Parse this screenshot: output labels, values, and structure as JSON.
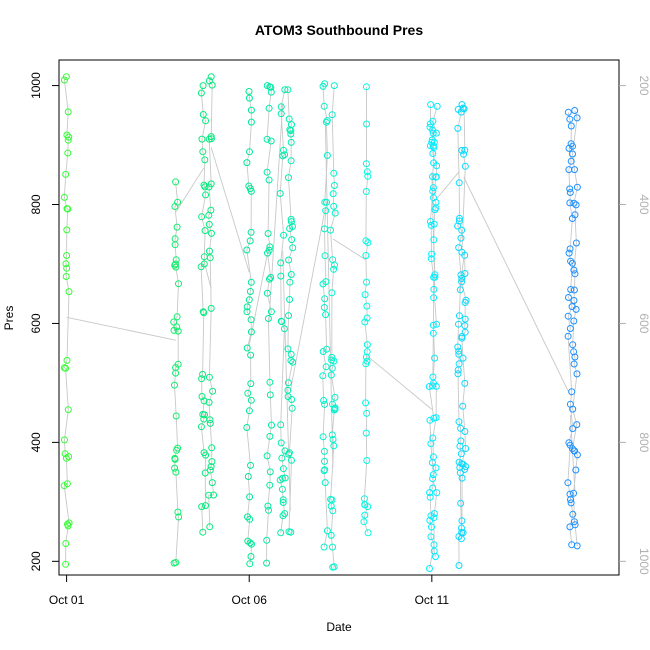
{
  "chart_data": {
    "type": "scatter",
    "title": "ATOM3 Southbound Pres",
    "xlabel": "Date",
    "ylabel": "Pres",
    "x_type": "date",
    "xlim": [
      "2000-09-30T19:00",
      "2000-10-16T03:00"
    ],
    "ylim": [
      177,
      1043
    ],
    "x_ticks": [
      {
        "value": "2000-10-01",
        "label": "Oct 01"
      },
      {
        "value": "2000-10-06",
        "label": "Oct 06"
      },
      {
        "value": "2000-10-11",
        "label": "Oct 11"
      }
    ],
    "y_ticks": [
      200,
      400,
      600,
      800,
      1000
    ],
    "y2_reversed": true,
    "y2_ticks": [
      200,
      400,
      600,
      800,
      1000
    ],
    "grid": false,
    "legend": "none",
    "series_color_ramp": [
      "#33ff33",
      "#00e68c",
      "#00ffff",
      "#1e90ff"
    ],
    "line_color": "#c8c8c8",
    "profiles": [
      {
        "x": "2000-10-01T00:00",
        "pmin": 195,
        "pmax": 1015
      },
      {
        "x": "2000-10-04T00:00",
        "pmin": 197,
        "pmax": 838
      },
      {
        "x": "2000-10-04T18:00",
        "pmin": 249,
        "pmax": 1000
      },
      {
        "x": "2000-10-04T23:00",
        "pmin": 258,
        "pmax": 1015
      },
      {
        "x": "2000-10-06T00:00",
        "pmin": 196,
        "pmax": 990
      },
      {
        "x": "2000-10-06T13:00",
        "pmin": 197,
        "pmax": 1000
      },
      {
        "x": "2000-10-06T22:00",
        "pmin": 248,
        "pmax": 993
      },
      {
        "x": "2000-10-07T03:00",
        "pmin": 249,
        "pmax": 993
      },
      {
        "x": "2000-10-08T02:00",
        "pmin": 224,
        "pmax": 1003
      },
      {
        "x": "2000-10-08T07:00",
        "pmin": 190,
        "pmax": 1000
      },
      {
        "x": "2000-10-09T05:00",
        "pmin": 248,
        "pmax": 998
      },
      {
        "x": "2000-10-11T00:00",
        "pmin": 188,
        "pmax": 968
      },
      {
        "x": "2000-10-11T02:00",
        "pmin": 208,
        "pmax": 965
      },
      {
        "x": "2000-10-11T18:00",
        "pmin": 193,
        "pmax": 960
      },
      {
        "x": "2000-10-11T21:00",
        "pmin": 238,
        "pmax": 968
      },
      {
        "x": "2000-10-14T19:00",
        "pmin": 228,
        "pmax": 955
      },
      {
        "x": "2000-10-14T22:00",
        "pmin": 226,
        "pmax": 958
      }
    ]
  }
}
